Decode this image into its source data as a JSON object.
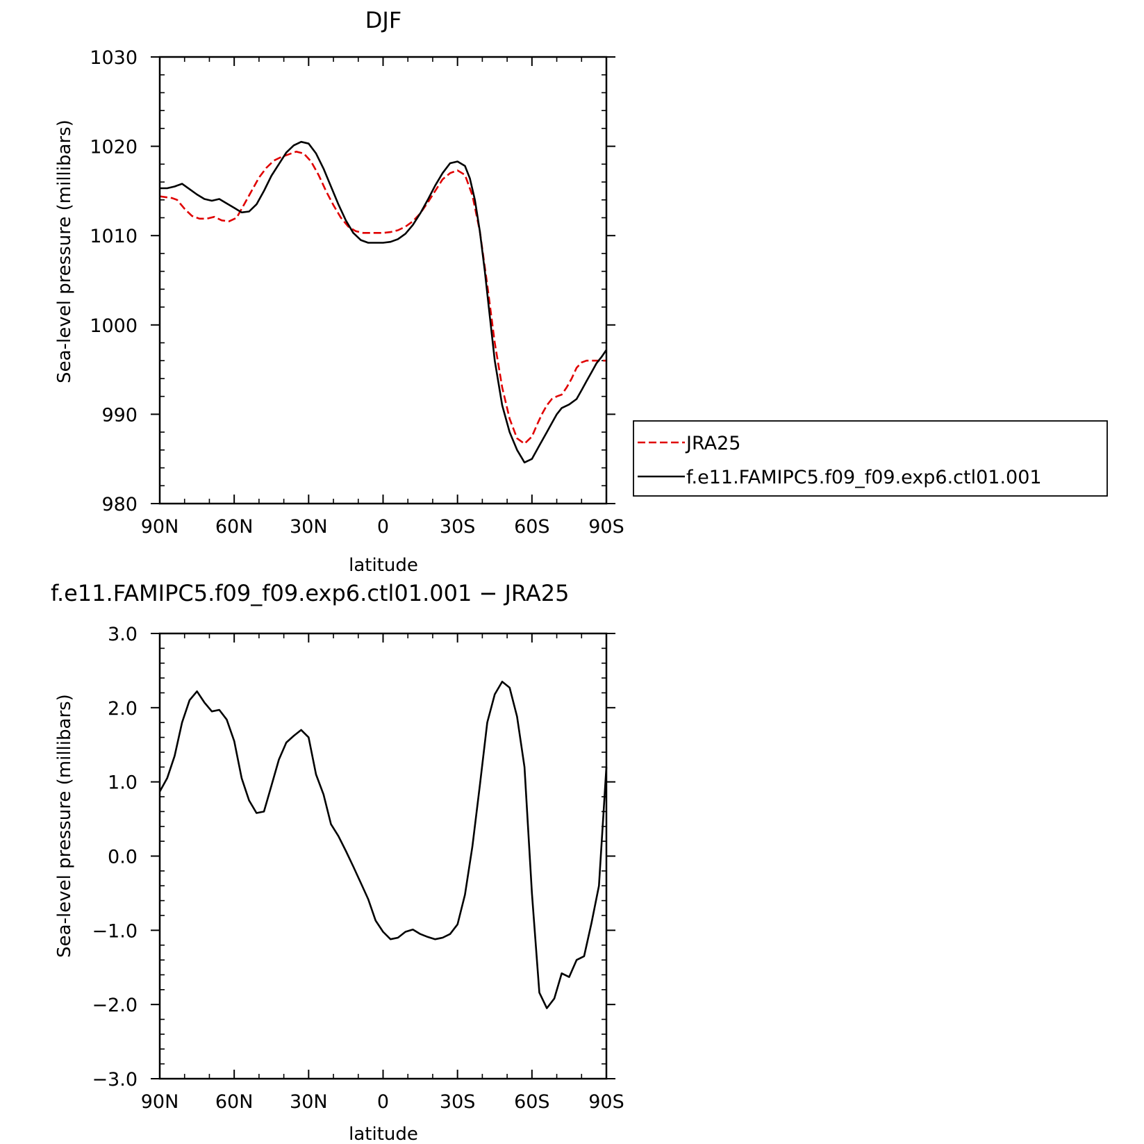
{
  "colors": {
    "jra": "#e00000",
    "model": "#000000",
    "axis": "#000000"
  },
  "chart_data": [
    {
      "type": "line",
      "title": "DJF",
      "xlabel": "latitude",
      "ylabel": "Sea-level pressure (millibars)",
      "xlim": [
        90,
        -90
      ],
      "ylim": [
        980,
        1030
      ],
      "xticks": [
        90,
        60,
        30,
        0,
        -30,
        -60,
        -90
      ],
      "xtick_labels": [
        "90N",
        "60N",
        "30N",
        "0",
        "30S",
        "60S",
        "90S"
      ],
      "yticks": [
        980,
        990,
        1000,
        1010,
        1020,
        1030
      ],
      "ytick_labels": [
        "980",
        "990",
        "1000",
        "1010",
        "1020",
        "1030"
      ],
      "legend": {
        "placement": "right",
        "items": [
          "JRA25",
          "f.e11.FAMIPC5.f09_f09.exp6.ctl01.001"
        ]
      },
      "series": [
        {
          "name": "JRA25",
          "style": "dashed",
          "color": "#e00000",
          "x": [
            90,
            85,
            83,
            80,
            77,
            74,
            71,
            68,
            65,
            62,
            59,
            56,
            53,
            50,
            47,
            44,
            41,
            38,
            35,
            32,
            29,
            26,
            23,
            20,
            17,
            14,
            11,
            8,
            5,
            2,
            0,
            -3,
            -6,
            -9,
            -12,
            -15,
            -18,
            -21,
            -24,
            -27,
            -30,
            -33,
            -36,
            -39,
            -42,
            -45,
            -48,
            -51,
            -54,
            -57,
            -60,
            -62,
            -64,
            -66,
            -68,
            -70,
            -72,
            -74,
            -76,
            -78,
            -80,
            -82,
            -84,
            -86,
            -88,
            -90
          ],
          "y": [
            1014.4,
            1014.2,
            1014.0,
            1013.0,
            1012.2,
            1011.9,
            1011.9,
            1012.1,
            1011.7,
            1011.6,
            1012.0,
            1013.5,
            1015.0,
            1016.5,
            1017.6,
            1018.4,
            1018.8,
            1019.1,
            1019.4,
            1019.2,
            1018.3,
            1016.8,
            1015.0,
            1013.4,
            1012.0,
            1011.0,
            1010.5,
            1010.3,
            1010.3,
            1010.3,
            1010.3,
            1010.4,
            1010.6,
            1011.0,
            1011.6,
            1012.5,
            1013.7,
            1015.0,
            1016.3,
            1017.0,
            1017.3,
            1016.8,
            1014.5,
            1010.5,
            1004.5,
            998.0,
            993.0,
            989.5,
            987.3,
            986.7,
            987.5,
            988.8,
            990.0,
            991.0,
            991.7,
            992.0,
            992.2,
            993.0,
            994.0,
            995.2,
            995.8,
            996.0,
            996.0,
            996.0,
            996.0,
            996.0
          ]
        },
        {
          "name": "f.e11.FAMIPC5.f09_f09.exp6.ctl01.001",
          "style": "solid",
          "color": "#000000",
          "x": [
            90,
            87,
            84,
            81,
            78,
            75,
            72,
            69,
            66,
            63,
            60,
            57,
            54,
            51,
            48,
            45,
            42,
            39,
            36,
            33,
            30,
            27,
            24,
            21,
            18,
            15,
            12,
            9,
            6,
            3,
            0,
            -3,
            -6,
            -9,
            -12,
            -15,
            -18,
            -21,
            -24,
            -27,
            -30,
            -33,
            -35,
            -37,
            -39,
            -41,
            -43,
            -45,
            -48,
            -51,
            -54,
            -57,
            -60,
            -63,
            -66,
            -68,
            -70,
            -72,
            -75,
            -78,
            -80,
            -82,
            -84,
            -86,
            -88,
            -90
          ],
          "y": [
            1015.3,
            1015.3,
            1015.5,
            1015.8,
            1015.2,
            1014.6,
            1014.1,
            1013.9,
            1014.1,
            1013.6,
            1013.1,
            1012.6,
            1012.7,
            1013.5,
            1015.0,
            1016.7,
            1018.0,
            1019.3,
            1020.1,
            1020.5,
            1020.3,
            1019.2,
            1017.5,
            1015.5,
            1013.5,
            1011.7,
            1010.3,
            1009.5,
            1009.2,
            1009.2,
            1009.2,
            1009.3,
            1009.6,
            1010.2,
            1011.2,
            1012.5,
            1014.0,
            1015.6,
            1017.0,
            1018.1,
            1018.3,
            1017.8,
            1016.4,
            1014.0,
            1010.5,
            1006.0,
            1001.0,
            996.0,
            991.0,
            988.0,
            986.0,
            984.6,
            985.0,
            986.5,
            988.0,
            989.0,
            990.0,
            990.7,
            991.1,
            991.7,
            992.7,
            993.7,
            994.7,
            995.7,
            996.4,
            997.2
          ]
        }
      ]
    },
    {
      "type": "line",
      "title": "f.e11.FAMIPC5.f09_f09.exp6.ctl01.001 − JRA25",
      "xlabel": "latitude",
      "ylabel": "Sea-level pressure (millibars)",
      "xlim": [
        90,
        -90
      ],
      "ylim": [
        -3.0,
        3.0
      ],
      "xticks": [
        90,
        60,
        30,
        0,
        -30,
        -60,
        -90
      ],
      "xtick_labels": [
        "90N",
        "60N",
        "30N",
        "0",
        "30S",
        "60S",
        "90S"
      ],
      "yticks": [
        -3.0,
        -2.0,
        -1.0,
        0.0,
        1.0,
        2.0,
        3.0
      ],
      "ytick_labels": [
        "−3.0",
        "−2.0",
        "−1.0",
        "0.0",
        "1.0",
        "2.0",
        "3.0"
      ],
      "series": [
        {
          "style": "solid",
          "color": "#000000",
          "x": [
            90,
            87,
            84,
            81,
            78,
            75,
            72,
            69,
            66,
            63,
            60,
            57,
            54,
            51,
            48,
            45,
            42,
            39,
            36,
            33,
            30,
            27,
            24,
            21,
            18,
            15,
            12,
            9,
            6,
            3,
            0,
            -3,
            -6,
            -9,
            -12,
            -15,
            -18,
            -21,
            -24,
            -27,
            -30,
            -33,
            -36,
            -39,
            -42,
            -45,
            -48,
            -51,
            -54,
            -57,
            -60,
            -63,
            -66,
            -69,
            -72,
            -75,
            -78,
            -81,
            -84,
            -87,
            -90
          ],
          "y": [
            0.87,
            1.05,
            1.35,
            1.8,
            2.1,
            2.22,
            2.07,
            1.95,
            1.97,
            1.84,
            1.55,
            1.05,
            0.75,
            0.58,
            0.6,
            0.95,
            1.3,
            1.53,
            1.62,
            1.7,
            1.6,
            1.1,
            0.83,
            0.43,
            0.27,
            0.07,
            -0.14,
            -0.36,
            -0.58,
            -0.87,
            -1.02,
            -1.12,
            -1.1,
            -1.02,
            -0.99,
            -1.05,
            -1.09,
            -1.12,
            -1.1,
            -1.05,
            -0.92,
            -0.52,
            0.13,
            0.95,
            1.8,
            2.18,
            2.35,
            2.27,
            1.88,
            1.2,
            -0.5,
            -1.84,
            -2.05,
            -1.92,
            -1.58,
            -1.63,
            -1.4,
            -1.35,
            -0.9,
            -0.4,
            1.2
          ]
        }
      ]
    }
  ]
}
